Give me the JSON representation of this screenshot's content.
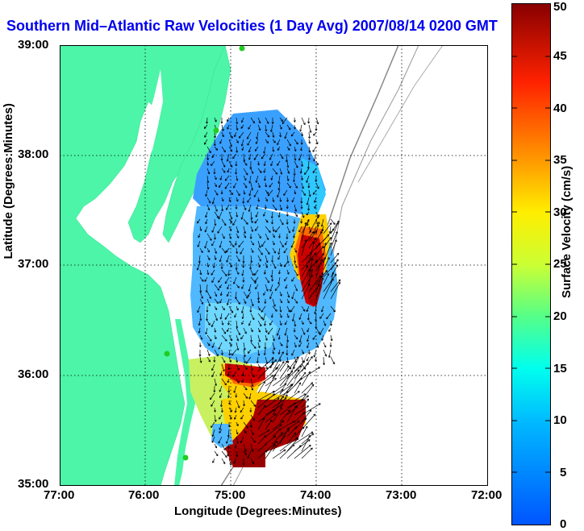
{
  "title": "Southern Mid–Atlantic Raw Velocities (1 Day Avg) 2007/08/14 0200 GMT",
  "axes": {
    "xlabel": "Longitude (Degrees:Minutes)",
    "ylabel": "Latitude (Degrees:Minutes)",
    "x_ticks": [
      "77:00",
      "76:00",
      "75:00",
      "74:00",
      "73:00",
      "72:00"
    ],
    "y_ticks": [
      "39:00",
      "38:00",
      "37:00",
      "36:00",
      "35:00"
    ]
  },
  "colorbar": {
    "label": "Surface Velocity (cm/s)",
    "ticks": [
      "50",
      "45",
      "40",
      "35",
      "30",
      "25",
      "20",
      "15",
      "10",
      "5",
      "0"
    ],
    "min": 0,
    "max": 50
  },
  "colors": {
    "land": "#4cf5a8",
    "water": "#ffffff",
    "title": "#0000ee",
    "station": "#22cc22"
  },
  "chart_data": {
    "type": "heatmap",
    "title": "Southern Mid–Atlantic Raw Velocities (1 Day Avg) 2007/08/14 0200 GMT",
    "xlabel": "Longitude (Degrees:Minutes)",
    "ylabel": "Latitude (Degrees:Minutes)",
    "xlim": [
      -77,
      -72
    ],
    "ylim": [
      35,
      39
    ],
    "colorbar_range": [
      0,
      50
    ],
    "regions": [
      {
        "lon": -74.6,
        "lat": 37.5,
        "speed": 8
      },
      {
        "lon": -74.8,
        "lat": 36.8,
        "speed": 12
      },
      {
        "lon": -74.15,
        "lat": 36.9,
        "speed": 50
      },
      {
        "lon": -74.6,
        "lat": 36.0,
        "speed": 48
      },
      {
        "lon": -74.5,
        "lat": 35.5,
        "speed": 49
      },
      {
        "lon": -75.1,
        "lat": 36.1,
        "speed": 22
      }
    ]
  }
}
